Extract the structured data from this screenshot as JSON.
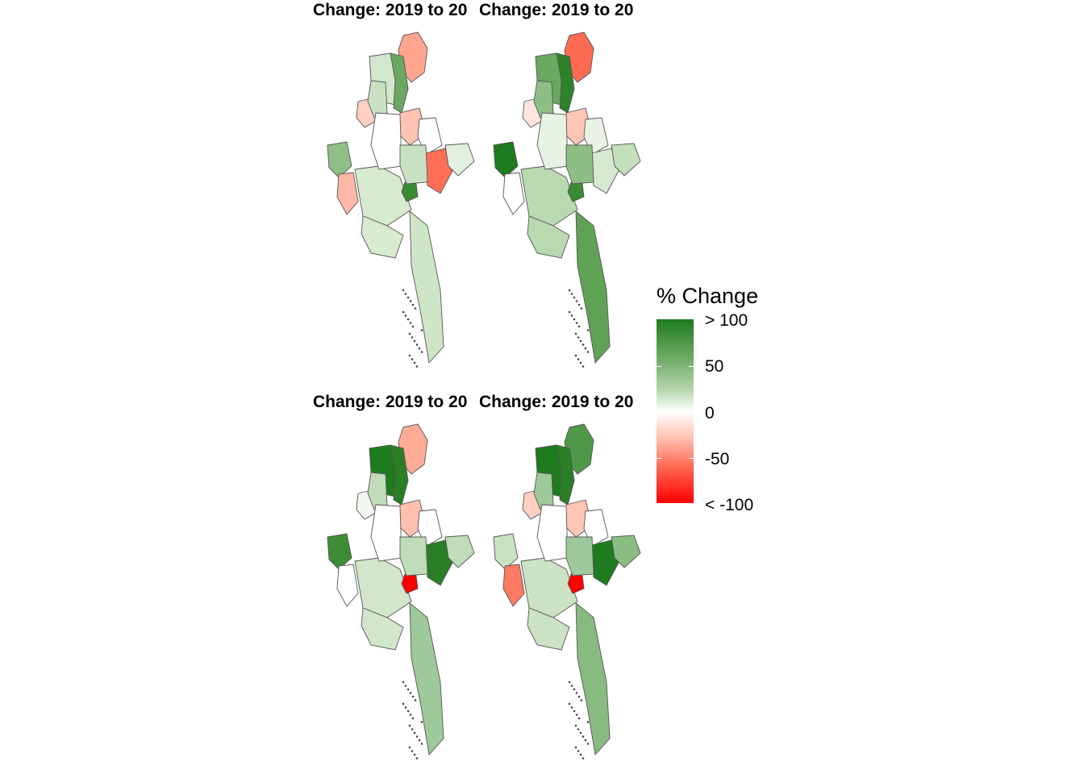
{
  "panels": [
    {
      "title": "Change: 2019 to 20",
      "colors": {
        "north": "#ffa48d",
        "nw": "#d2e7cc",
        "west_big": "#8fbf86",
        "chin_a": "#ffd0c2",
        "chin_b": "#c9e1c2",
        "sagaing": "#6aa862",
        "center": "#ffc3b2",
        "center2": "#ffffff",
        "east": "#ff6e55",
        "east2": "#e3f0df",
        "delta": "#d8eacf",
        "south": "#cfe5c7",
        "spot": "#3b8a34",
        "rakhine": "#ffb8a6"
      }
    },
    {
      "title": "Change: 2019 to 20",
      "colors": {
        "north": "#ff6a52",
        "nw": "#6ba862",
        "west_big": "#1e7b1e",
        "chin_a": "#ffe5dd",
        "chin_b": "#8dbf85",
        "sagaing": "#2e8229",
        "center": "#ffc6b6",
        "center2": "#e8f3e5",
        "east": "#d6e9d0",
        "east2": "#c3dfbb",
        "delta": "#b9d9b1",
        "south": "#5fa255",
        "spot": "#3b8a34",
        "rakhine": "#ffffff"
      }
    },
    {
      "title": "Change: 2019 to 20",
      "colors": {
        "north": "#ffab95",
        "nw": "#1e7b1e",
        "west_big": "#3f8c38",
        "chin_a": "#f2f8f0",
        "chin_b": "#c0dcb8",
        "sagaing": "#2a7f26",
        "center": "#ffc0ae",
        "center2": "#ffffff",
        "east": "#2a7f26",
        "east2": "#c0dcb8",
        "delta": "#d2e6cb",
        "south": "#9ec99a",
        "spot": "#ff0000",
        "rakhine": "#ffffff"
      }
    },
    {
      "title": "Change: 2019 to 20",
      "colors": {
        "north": "#4f984a",
        "nw": "#1e7b1e",
        "west_big": "#c9e2c2",
        "chin_a": "#ffd0c2",
        "chin_b": "#9ec99a",
        "sagaing": "#2a7f26",
        "center": "#ffc6b6",
        "center2": "#ffffff",
        "east": "#1e7b1e",
        "east2": "#8bbd83",
        "delta": "#cbe3c4",
        "south": "#88bb80",
        "spot": "#ff0000",
        "rakhine": "#ff7a62"
      }
    }
  ],
  "legend": {
    "title": "% Change",
    "labels": [
      "> 100",
      "50",
      "0",
      "-50",
      "< -100"
    ],
    "values": [
      100,
      50,
      0,
      -50,
      -100
    ],
    "colors": {
      "high": "#1e7b1e",
      "mid": "#ffffff",
      "low": "#ff0000"
    }
  }
}
